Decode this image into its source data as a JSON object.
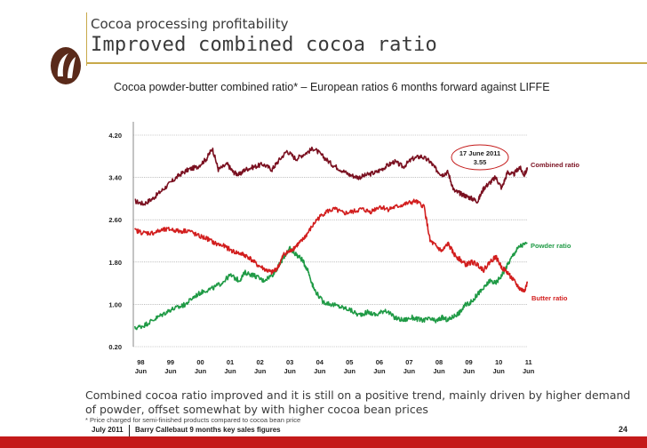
{
  "header": {
    "kicker": "Cocoa processing profitability",
    "title": "Improved combined cocoa ratio"
  },
  "chart_data": {
    "type": "line",
    "title": "Cocoa powder-butter combined ratio* – European ratios 6 months forward against LIFFE",
    "xlabel": "",
    "ylabel": "",
    "ylim": [
      0.2,
      4.2
    ],
    "yticks": [
      "4.20",
      "3.40",
      "2.60",
      "1.80",
      "1.00",
      "0.20"
    ],
    "ytick_values": [
      4.2,
      3.4,
      2.6,
      1.8,
      1.0,
      0.2
    ],
    "xlim": [
      1998.25,
      2011.45
    ],
    "xticks": [
      {
        "year": "98",
        "month": "Jun",
        "x": 1998.5
      },
      {
        "year": "99",
        "month": "Jun",
        "x": 1999.5
      },
      {
        "year": "00",
        "month": "Jun",
        "x": 2000.5
      },
      {
        "year": "01",
        "month": "Jun",
        "x": 2001.5
      },
      {
        "year": "02",
        "month": "Jun",
        "x": 2002.5
      },
      {
        "year": "03",
        "month": "Jun",
        "x": 2003.5
      },
      {
        "year": "04",
        "month": "Jun",
        "x": 2004.5
      },
      {
        "year": "05",
        "month": "Jun",
        "x": 2005.5
      },
      {
        "year": "06",
        "month": "Jun",
        "x": 2006.5
      },
      {
        "year": "07",
        "month": "Jun",
        "x": 2007.5
      },
      {
        "year": "08",
        "month": "Jun",
        "x": 2008.5
      },
      {
        "year": "09",
        "month": "Jun",
        "x": 2009.5
      },
      {
        "year": "10",
        "month": "Jun",
        "x": 2010.5
      },
      {
        "year": "11",
        "month": "Jun",
        "x": 2011.5
      }
    ],
    "grid": true,
    "series": [
      {
        "name": "Combined ratio",
        "color": "#7a1020",
        "x": [
          1998.3,
          1998.6,
          1998.9,
          1999.2,
          1999.5,
          1999.8,
          2000.1,
          2000.4,
          2000.7,
          2000.9,
          2001.1,
          2001.4,
          2001.6,
          2001.8,
          2002.0,
          2002.3,
          2002.6,
          2002.9,
          2003.1,
          2003.4,
          2003.7,
          2004.0,
          2004.3,
          2004.6,
          2004.9,
          2005.2,
          2005.5,
          2005.8,
          2006.1,
          2006.4,
          2006.7,
          2007.0,
          2007.3,
          2007.6,
          2007.9,
          2008.2,
          2008.4,
          2008.6,
          2008.8,
          2009.0,
          2009.2,
          2009.4,
          2009.6,
          2009.8,
          2010.0,
          2010.2,
          2010.4,
          2010.6,
          2010.8,
          2011.0,
          2011.2,
          2011.35,
          2011.46
        ],
        "values": [
          2.95,
          2.9,
          3.0,
          3.15,
          3.3,
          3.45,
          3.55,
          3.6,
          3.75,
          3.95,
          3.55,
          3.65,
          3.5,
          3.45,
          3.55,
          3.6,
          3.65,
          3.55,
          3.7,
          3.9,
          3.75,
          3.85,
          3.95,
          3.8,
          3.65,
          3.55,
          3.45,
          3.4,
          3.45,
          3.5,
          3.6,
          3.7,
          3.6,
          3.75,
          3.8,
          3.7,
          3.55,
          3.45,
          3.5,
          3.15,
          3.1,
          3.05,
          3.0,
          2.95,
          3.2,
          3.3,
          3.4,
          3.2,
          3.5,
          3.45,
          3.6,
          3.45,
          3.55
        ]
      },
      {
        "name": "Powder ratio",
        "color": "#1f9a45",
        "x": [
          1998.3,
          1998.6,
          1998.9,
          1999.2,
          1999.5,
          1999.8,
          2000.0,
          2000.3,
          2000.6,
          2000.9,
          2001.2,
          2001.5,
          2001.8,
          2002.0,
          2002.3,
          2002.6,
          2002.9,
          2003.1,
          2003.3,
          2003.5,
          2003.7,
          2003.9,
          2004.1,
          2004.3,
          2004.6,
          2004.9,
          2005.2,
          2005.5,
          2005.8,
          2006.1,
          2006.4,
          2006.7,
          2007.0,
          2007.3,
          2007.6,
          2007.9,
          2008.2,
          2008.4,
          2008.6,
          2008.8,
          2009.0,
          2009.2,
          2009.4,
          2009.6,
          2009.8,
          2010.0,
          2010.2,
          2010.4,
          2010.6,
          2010.8,
          2011.0,
          2011.2,
          2011.46
        ],
        "values": [
          0.55,
          0.6,
          0.7,
          0.8,
          0.9,
          0.95,
          1.0,
          1.15,
          1.25,
          1.3,
          1.4,
          1.55,
          1.45,
          1.6,
          1.55,
          1.45,
          1.55,
          1.7,
          1.9,
          2.05,
          1.95,
          1.85,
          1.65,
          1.3,
          1.05,
          1.0,
          0.95,
          0.9,
          0.8,
          0.85,
          0.8,
          0.9,
          0.75,
          0.7,
          0.75,
          0.7,
          0.72,
          0.68,
          0.75,
          0.7,
          0.78,
          0.85,
          1.0,
          1.05,
          1.2,
          1.3,
          1.45,
          1.4,
          1.55,
          1.75,
          1.95,
          2.1,
          2.15
        ]
      },
      {
        "name": "Butter ratio",
        "color": "#d21e1e",
        "x": [
          1998.3,
          1998.6,
          1998.9,
          1999.2,
          1999.5,
          1999.8,
          2000.1,
          2000.4,
          2000.7,
          2001.0,
          2001.3,
          2001.6,
          2001.9,
          2002.1,
          2002.4,
          2002.7,
          2002.9,
          2003.1,
          2003.3,
          2003.5,
          2003.7,
          2003.9,
          2004.1,
          2004.4,
          2004.7,
          2005.0,
          2005.3,
          2005.6,
          2005.9,
          2006.2,
          2006.5,
          2006.8,
          2007.1,
          2007.4,
          2007.7,
          2008.0,
          2008.2,
          2008.4,
          2008.6,
          2008.8,
          2009.0,
          2009.2,
          2009.4,
          2009.6,
          2009.8,
          2010.0,
          2010.2,
          2010.4,
          2010.6,
          2010.8,
          2011.0,
          2011.2,
          2011.35,
          2011.46
        ],
        "values": [
          2.4,
          2.35,
          2.35,
          2.4,
          2.42,
          2.38,
          2.4,
          2.3,
          2.25,
          2.15,
          2.1,
          2.0,
          1.95,
          1.9,
          1.75,
          1.65,
          1.6,
          1.7,
          1.95,
          2.0,
          2.1,
          2.2,
          2.35,
          2.6,
          2.75,
          2.8,
          2.72,
          2.75,
          2.8,
          2.75,
          2.85,
          2.8,
          2.85,
          2.9,
          2.95,
          2.85,
          2.2,
          2.1,
          2.0,
          2.15,
          1.95,
          1.85,
          1.75,
          1.8,
          1.75,
          1.65,
          1.8,
          1.9,
          1.7,
          1.6,
          1.45,
          1.3,
          1.25,
          1.4
        ]
      }
    ],
    "annotation": {
      "date": "17 June 2011",
      "value": "3.55"
    }
  },
  "comment": "Combined cocoa ratio improved and it is still on a positive trend, mainly driven by higher demand of powder, offset somewhat by with higher cocoa bean prices",
  "footnote": "* Price charged for semi-finished products compared to cocoa bean price",
  "footer": {
    "date": "July 2011",
    "description": "Barry Callebaut 9 months key sales figures",
    "page": "24"
  },
  "colors": {
    "accent_rule": "#c8a94a",
    "bottom_bar": "#c41a1a",
    "logo": "#5a2a1a"
  }
}
